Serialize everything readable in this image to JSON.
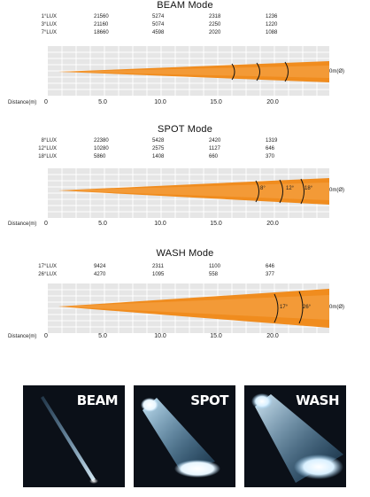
{
  "modes": [
    {
      "title": "BEAM Mode",
      "rows": [
        {
          "angle": "1°LUX",
          "values": [
            "21560",
            "5274",
            "2318",
            "1236"
          ]
        },
        {
          "angle": "3°LUX",
          "values": [
            "21160",
            "5074",
            "2250",
            "1220"
          ]
        },
        {
          "angle": "7°LUX",
          "values": [
            "18660",
            "4598",
            "2020",
            "1088"
          ]
        }
      ],
      "angle_marks": [
        "",
        "",
        ""
      ],
      "end_label": "0m(Ø)"
    },
    {
      "title": "SPOT Mode",
      "rows": [
        {
          "angle": "8°LUX",
          "values": [
            "22380",
            "5428",
            "2420",
            "1319"
          ]
        },
        {
          "angle": "12°LUX",
          "values": [
            "10280",
            "2575",
            "1127",
            "646"
          ]
        },
        {
          "angle": "18°LUX",
          "values": [
            "5860",
            "1408",
            "660",
            "370"
          ]
        }
      ],
      "angle_marks": [
        "8°",
        "12°",
        "18°"
      ],
      "end_label": "0m(Ø)"
    },
    {
      "title": "WASH Mode",
      "rows": [
        {
          "angle": "17°LUX",
          "values": [
            "9424",
            "2311",
            "1100",
            "646"
          ]
        },
        {
          "angle": "26°LUX",
          "values": [
            "4270",
            "1095",
            "558",
            "377"
          ]
        }
      ],
      "angle_marks": [
        "17°",
        "26°"
      ],
      "end_label": "0m(Ø)"
    }
  ],
  "distance_label": "Distance(m)",
  "distance_ticks": [
    "0",
    "5.0",
    "10.0",
    "15.0",
    "20.0"
  ],
  "photos": [
    {
      "label": "BEAM"
    },
    {
      "label": "SPOT"
    },
    {
      "label": "WASH"
    }
  ],
  "colors": {
    "beam": "#f08c1e",
    "grid": "#e2e2e2",
    "photo_bg": "#0b1018"
  }
}
